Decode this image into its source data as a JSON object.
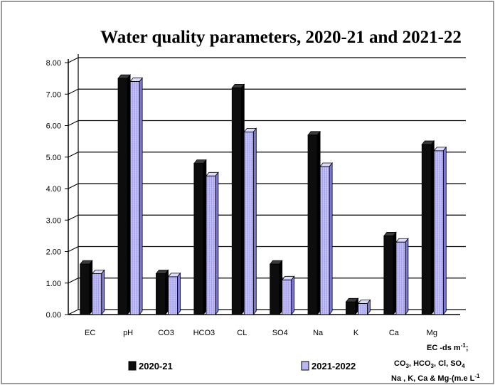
{
  "chart_data": {
    "type": "bar",
    "title": "Water quality parameters, 2020-21 and 2021-22",
    "categories": [
      "EC",
      "pH",
      "CO3",
      "HCO3",
      "CL",
      "SO4",
      "Na",
      "K",
      "Ca",
      "Mg"
    ],
    "yticks": [
      "0.00",
      "1.00",
      "2.00",
      "3.00",
      "4.00",
      "5.00",
      "6.00",
      "7.00",
      "8.00"
    ],
    "ylim": [
      0,
      8
    ],
    "grid": true,
    "legend_position": "bottom",
    "series": [
      {
        "name": "2020-21",
        "color": "#111111",
        "values": [
          1.6,
          7.5,
          1.3,
          4.8,
          7.2,
          1.6,
          5.7,
          0.4,
          2.5,
          5.4
        ]
      },
      {
        "name": "2021-2022",
        "color": "#b9b6f2",
        "values": [
          1.3,
          7.4,
          1.2,
          4.4,
          5.8,
          1.1,
          4.7,
          0.35,
          2.3,
          5.2
        ]
      }
    ],
    "units_note": [
      "EC -ds m",
      "CO , HCO , Cl, SO",
      "Na , K, Ca & Mg-(m.e L"
    ],
    "units_note_marks": {
      "sup_minus1": "-1",
      "semicolon": ";",
      "sub3": "3",
      "sub4": "4"
    }
  }
}
